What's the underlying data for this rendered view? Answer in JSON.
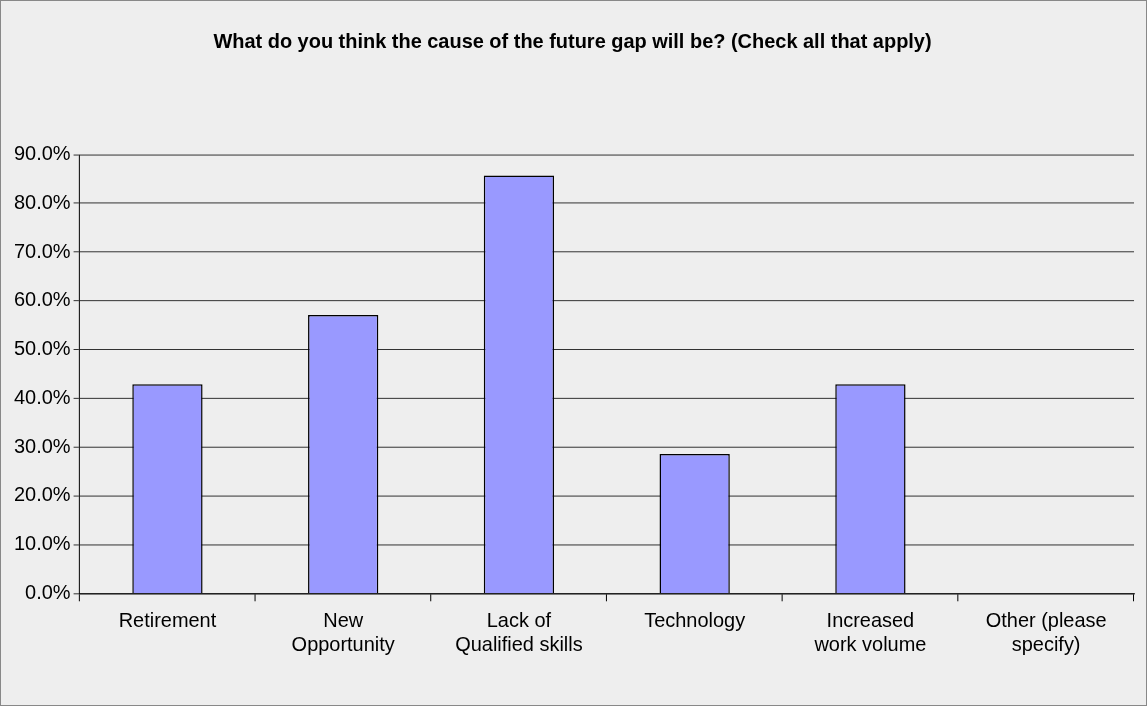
{
  "chart_data": {
    "type": "bar",
    "title": "What do you think the cause of the future gap will be? (Check all that apply)",
    "categories": [
      "Retirement",
      "New Opportunity",
      "Lack of Qualified skills",
      "Technology",
      "Increased work volume",
      "Other (please specify)"
    ],
    "values": [
      42.9,
      57.1,
      85.7,
      28.6,
      42.9,
      0
    ],
    "color": "#9999ff",
    "ylim": [
      0,
      90
    ],
    "yticks": [
      {
        "value": 0,
        "label": "0.0%"
      },
      {
        "value": 10,
        "label": "10.0%"
      },
      {
        "value": 20,
        "label": "20.0%"
      },
      {
        "value": 30,
        "label": "30.0%"
      },
      {
        "value": 40,
        "label": "40.0%"
      },
      {
        "value": 50,
        "label": "50.0%"
      },
      {
        "value": 60,
        "label": "60.0%"
      },
      {
        "value": 70,
        "label": "70.0%"
      },
      {
        "value": 80,
        "label": "80.0%"
      },
      {
        "value": 90,
        "label": "90.0%"
      }
    ],
    "grid": "y",
    "legend": false
  }
}
